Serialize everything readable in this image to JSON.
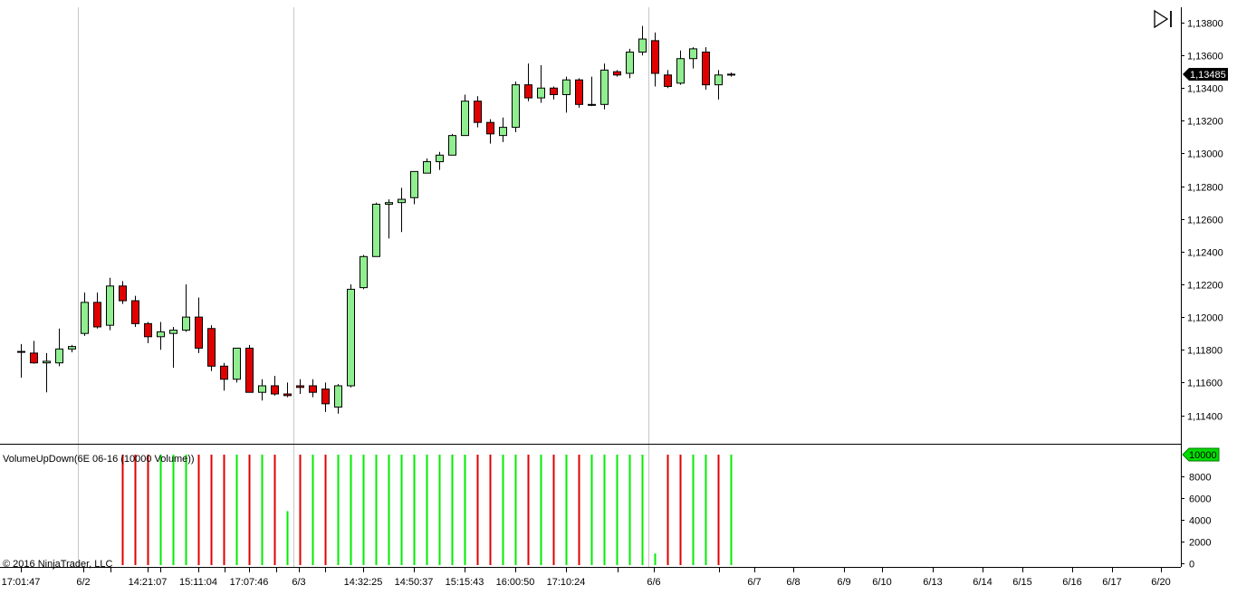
{
  "indicator_title": "VolumeUpDown(6E 06-16 (10000 Volume))",
  "copyright": "© 2016 NinjaTrader, LLC",
  "current_price_label": "1,13485",
  "volume_marker_label": "10000",
  "icons": {
    "scroll_end": "scroll-to-end-icon"
  },
  "colors": {
    "up_candle": "#90ee90",
    "down_candle": "#e00000",
    "up_volume": "#00ee00",
    "down_volume": "#e00000",
    "price_marker": "#000000",
    "volume_marker": "#00dd00"
  },
  "chart_data": [
    {
      "type": "candlestick",
      "series_name": "6E 06-16",
      "ylim": [
        1.113,
        1.139
      ],
      "y_ticks": [
        "1,11400",
        "1,11600",
        "1,11800",
        "1,12000",
        "1,12200",
        "1,12400",
        "1,12600",
        "1,12800",
        "1,13000",
        "1,13200",
        "1,13400",
        "1,13600",
        "1,13800"
      ],
      "x_tick_labels": [
        "17:01:47",
        "6/2",
        "14:21:07",
        "15:11:04",
        "17:07:46",
        "6/3",
        "14:32:25",
        "14:50:37",
        "15:15:43",
        "16:00:50",
        "17:10:24",
        "6/6",
        "6/7",
        "6/8",
        "6/9",
        "6/10",
        "6/13",
        "6/14",
        "6/15",
        "6/16",
        "6/17",
        "6/20"
      ],
      "session_breaks": [
        "6/2",
        "6/3",
        "6/6"
      ],
      "last_price": 1.13485,
      "candles": [
        [
          1.11785,
          1.11835,
          1.1163,
          1.1179
        ],
        [
          1.1178,
          1.11855,
          1.11715,
          1.1172
        ],
        [
          1.1172,
          1.1178,
          1.1154,
          1.1173
        ],
        [
          1.1172,
          1.1193,
          1.117,
          1.11805
        ],
        [
          1.11805,
          1.1183,
          1.11785,
          1.1182
        ],
        [
          1.119,
          1.1215,
          1.11885,
          1.1209
        ],
        [
          1.1209,
          1.1215,
          1.1193,
          1.1194
        ],
        [
          1.1195,
          1.1224,
          1.1192,
          1.1219
        ],
        [
          1.1219,
          1.1222,
          1.1208,
          1.121
        ],
        [
          1.121,
          1.1213,
          1.1194,
          1.1196
        ],
        [
          1.1196,
          1.1197,
          1.1184,
          1.1188
        ],
        [
          1.1188,
          1.1197,
          1.118,
          1.1191
        ],
        [
          1.119,
          1.1194,
          1.1169,
          1.1192
        ],
        [
          1.1192,
          1.122,
          1.1191,
          1.12
        ],
        [
          1.12,
          1.1212,
          1.1178,
          1.1181
        ],
        [
          1.1193,
          1.1195,
          1.1167,
          1.117
        ],
        [
          1.117,
          1.1172,
          1.1155,
          1.1162
        ],
        [
          1.1162,
          1.1181,
          1.116,
          1.1181
        ],
        [
          1.1181,
          1.1183,
          1.1154,
          1.1154
        ],
        [
          1.1154,
          1.1162,
          1.1149,
          1.1158
        ],
        [
          1.1158,
          1.1164,
          1.1152,
          1.1153
        ],
        [
          1.1153,
          1.116,
          1.1151,
          1.1152
        ],
        [
          1.1158,
          1.1162,
          1.1153,
          1.1157
        ],
        [
          1.1158,
          1.1162,
          1.1151,
          1.1154
        ],
        [
          1.1156,
          1.116,
          1.1142,
          1.1147
        ],
        [
          1.1145,
          1.1159,
          1.1141,
          1.1158
        ],
        [
          1.1158,
          1.122,
          1.1157,
          1.1217
        ],
        [
          1.1218,
          1.1238,
          1.1217,
          1.1237
        ],
        [
          1.1237,
          1.127,
          1.1237,
          1.1269
        ],
        [
          1.1269,
          1.1272,
          1.1248,
          1.127
        ],
        [
          1.127,
          1.1279,
          1.1252,
          1.1272
        ],
        [
          1.1273,
          1.1289,
          1.1269,
          1.1289
        ],
        [
          1.1288,
          1.1297,
          1.1288,
          1.1295
        ],
        [
          1.1295,
          1.1301,
          1.129,
          1.1299
        ],
        [
          1.1299,
          1.1312,
          1.1299,
          1.1311
        ],
        [
          1.1311,
          1.1336,
          1.1311,
          1.1332
        ],
        [
          1.1332,
          1.1335,
          1.1316,
          1.1319
        ],
        [
          1.1319,
          1.1321,
          1.1306,
          1.1312
        ],
        [
          1.1311,
          1.1322,
          1.1307,
          1.1316
        ],
        [
          1.1316,
          1.1344,
          1.1313,
          1.1342
        ],
        [
          1.1342,
          1.1355,
          1.1332,
          1.1334
        ],
        [
          1.1334,
          1.1354,
          1.1331,
          1.134
        ],
        [
          1.134,
          1.1341,
          1.1333,
          1.1336
        ],
        [
          1.1336,
          1.1347,
          1.1325,
          1.1345
        ],
        [
          1.1345,
          1.1346,
          1.1328,
          1.133
        ],
        [
          1.133,
          1.1347,
          1.1329,
          1.133
        ],
        [
          1.133,
          1.1355,
          1.1327,
          1.1351
        ],
        [
          1.135,
          1.1351,
          1.1347,
          1.1348
        ],
        [
          1.1349,
          1.1364,
          1.1346,
          1.1362
        ],
        [
          1.1362,
          1.1378,
          1.136,
          1.137
        ],
        [
          1.1369,
          1.1374,
          1.1341,
          1.1349
        ],
        [
          1.1348,
          1.1351,
          1.134,
          1.1341
        ],
        [
          1.1343,
          1.1363,
          1.1342,
          1.1358
        ],
        [
          1.1358,
          1.1365,
          1.1352,
          1.1364
        ],
        [
          1.1362,
          1.1365,
          1.1339,
          1.1342
        ],
        [
          1.1342,
          1.1351,
          1.1333,
          1.1348
        ],
        [
          1.13485,
          1.13495,
          1.1347,
          1.13485
        ]
      ]
    },
    {
      "type": "bar",
      "series_name": "VolumeUpDown(6E 06-16 (10000 Volume))",
      "ylim": [
        0,
        10000
      ],
      "y_ticks": [
        "0",
        "2000",
        "4000",
        "6000",
        "8000",
        "10000"
      ],
      "bars": [
        [
          8,
          "down",
          10000
        ],
        [
          9,
          "down",
          10000
        ],
        [
          10,
          "down",
          10000
        ],
        [
          11,
          "up",
          10000
        ],
        [
          12,
          "up",
          10000
        ],
        [
          13,
          "up",
          10000
        ],
        [
          14,
          "down",
          10000
        ],
        [
          15,
          "down",
          10000
        ],
        [
          16,
          "down",
          10000
        ],
        [
          17,
          "up",
          10000
        ],
        [
          18,
          "down",
          10000
        ],
        [
          19,
          "up",
          10000
        ],
        [
          20,
          "down",
          10000
        ],
        [
          21,
          "up",
          4800
        ],
        [
          22,
          "down",
          10000
        ],
        [
          23,
          "up",
          10000
        ],
        [
          24,
          "down",
          10000
        ],
        [
          25,
          "up",
          10000
        ],
        [
          26,
          "up",
          10000
        ],
        [
          27,
          "up",
          10000
        ],
        [
          28,
          "up",
          10000
        ],
        [
          29,
          "up",
          10000
        ],
        [
          30,
          "up",
          10000
        ],
        [
          31,
          "up",
          10000
        ],
        [
          32,
          "up",
          10000
        ],
        [
          33,
          "up",
          10000
        ],
        [
          34,
          "up",
          10000
        ],
        [
          35,
          "up",
          10000
        ],
        [
          36,
          "down",
          10000
        ],
        [
          37,
          "down",
          10000
        ],
        [
          38,
          "up",
          10000
        ],
        [
          39,
          "up",
          10000
        ],
        [
          40,
          "down",
          10000
        ],
        [
          41,
          "up",
          10000
        ],
        [
          42,
          "down",
          10000
        ],
        [
          43,
          "up",
          10000
        ],
        [
          44,
          "down",
          10000
        ],
        [
          45,
          "up",
          10000
        ],
        [
          46,
          "up",
          10000
        ],
        [
          47,
          "up",
          10000
        ],
        [
          48,
          "up",
          10000
        ],
        [
          49,
          "up",
          10000
        ],
        [
          50,
          "up",
          900
        ],
        [
          51,
          "down",
          10000
        ],
        [
          52,
          "down",
          10000
        ],
        [
          53,
          "up",
          10000
        ],
        [
          54,
          "up",
          10000
        ],
        [
          55,
          "down",
          10000
        ],
        [
          56,
          "up",
          10000
        ]
      ]
    }
  ]
}
